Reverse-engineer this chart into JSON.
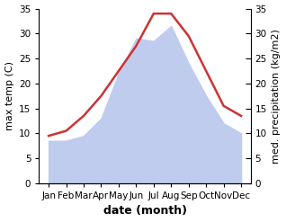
{
  "months": [
    "Jan",
    "Feb",
    "Mar",
    "Apr",
    "May",
    "Jun",
    "Jul",
    "Aug",
    "Sep",
    "Oct",
    "Nov",
    "Dec"
  ],
  "temperature": [
    9.5,
    10.5,
    13.5,
    17.5,
    22.5,
    27.5,
    34.0,
    34.0,
    29.5,
    22.5,
    15.5,
    13.5
  ],
  "precipitation": [
    8.5,
    8.5,
    9.5,
    13.0,
    22.0,
    29.0,
    28.5,
    31.5,
    24.0,
    17.5,
    12.0,
    10.0
  ],
  "temp_color": "#cc3333",
  "precip_color": "#c0ccee",
  "background_color": "#ffffff",
  "ylabel_left": "max temp (C)",
  "ylabel_right": "med. precipitation (kg/m2)",
  "xlabel": "date (month)",
  "ylim": [
    0,
    35
  ],
  "yticks": [
    0,
    5,
    10,
    15,
    20,
    25,
    30,
    35
  ],
  "label_fontsize": 8,
  "tick_fontsize": 7.5,
  "xlabel_fontsize": 9
}
